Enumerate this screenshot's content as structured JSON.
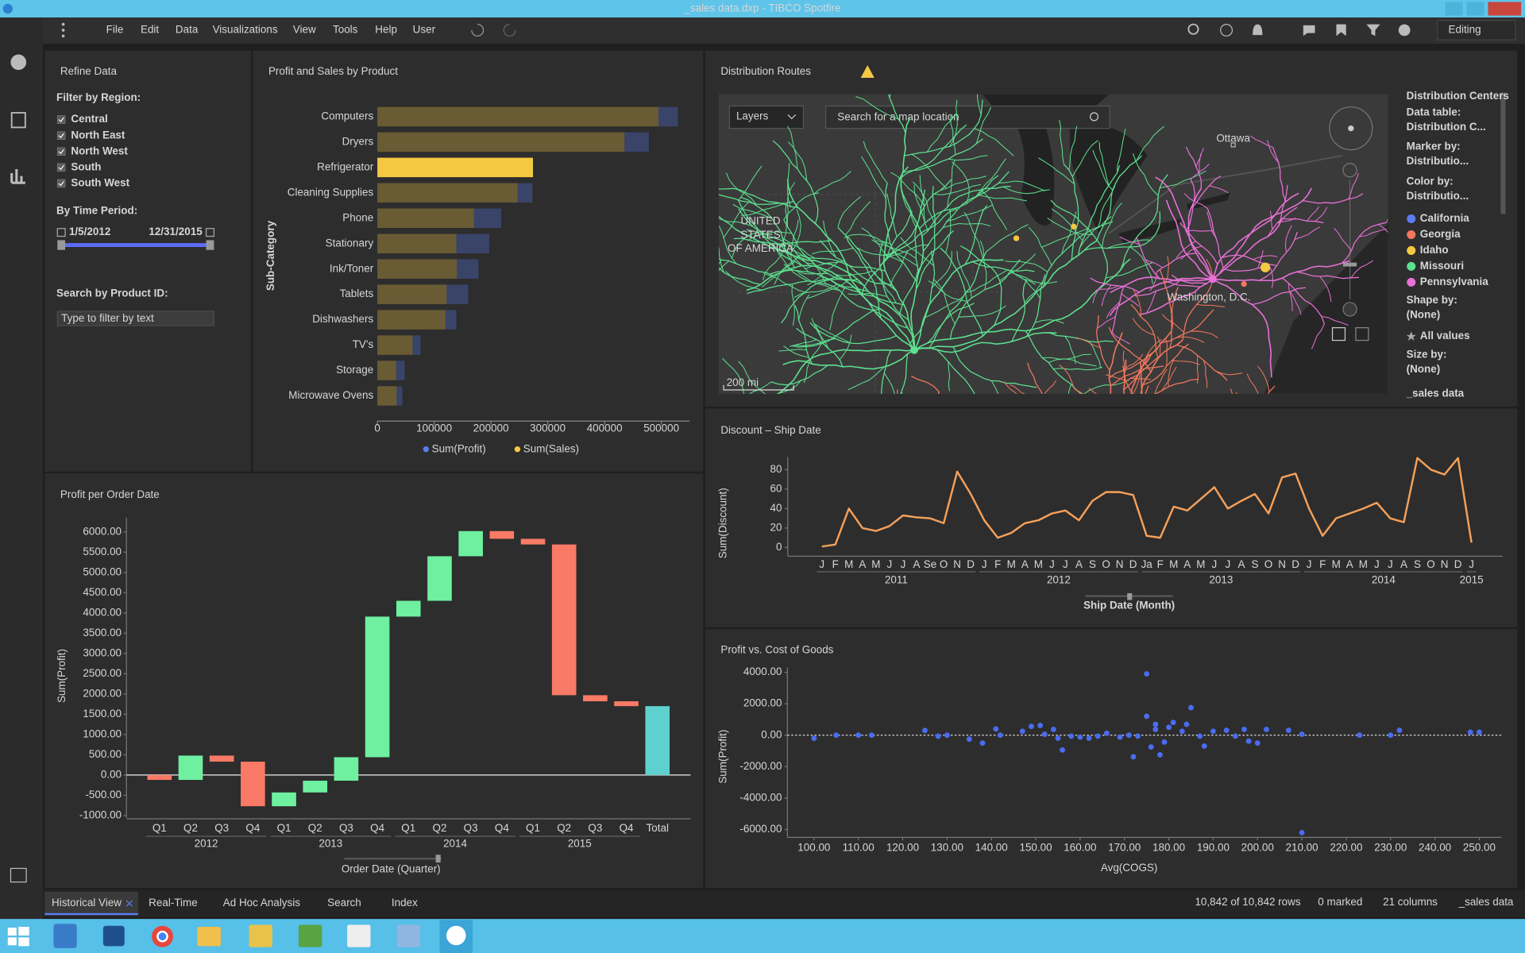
{
  "window": {
    "title": "_sales data.dxp - TIBCO Spotfire"
  },
  "menu": [
    "File",
    "Edit",
    "Data",
    "Visualizations",
    "View",
    "Tools",
    "Help",
    "User"
  ],
  "mode": "Editing",
  "filter_panel": {
    "title": "Refine Data",
    "region_label": "Filter by Region:",
    "regions": [
      "Central",
      "North East",
      "North West",
      "South",
      "South West"
    ],
    "time_label": "By Time Period:",
    "start": "1/5/2012",
    "end": "12/31/2015",
    "search_label": "Search by Product ID:",
    "search_placeholder": "Type to filter by text"
  },
  "map": {
    "title": "Distribution Routes",
    "layers": "Layers",
    "search_placeholder": "Search for a map location",
    "places": [
      "Ottawa",
      "UNITED",
      "STATES",
      "OF AMERICA",
      "Washington, D.C."
    ],
    "scale": "200 mi",
    "legend": {
      "title": "Distribution Centers",
      "data_table_label": "Data table:",
      "data_table": "Distribution C...",
      "marker_label": "Marker by:",
      "marker_by": "Distributio...",
      "color_label": "Color by:",
      "color_by": "Distributio...",
      "items": [
        {
          "name": "California",
          "color": "#5b7cf5"
        },
        {
          "name": "Georgia",
          "color": "#f2775e"
        },
        {
          "name": "Idaho",
          "color": "#f5c842"
        },
        {
          "name": "Missouri",
          "color": "#5de08f"
        },
        {
          "name": "Pennsylvania",
          "color": "#e870d6"
        }
      ],
      "shape_label": "Shape by:",
      "shape_by": "(None)",
      "shape_item": "All values",
      "size_label": "Size by:",
      "size_by": "(None)",
      "table": "_sales data"
    }
  },
  "chart_data": [
    {
      "type": "bar",
      "orientation": "horizontal",
      "stacked": true,
      "title": "Profit and Sales by Product",
      "y_label": "Sub-Category",
      "categories": [
        "Computers",
        "Dryers",
        "Refrigerator",
        "Cleaning Supplies",
        "Phone",
        "Stationary",
        "Ink/Toner",
        "Tablets",
        "Dishwashers",
        "TV's",
        "Storage",
        "Microwave Ovens"
      ],
      "series": [
        {
          "name": "Sum(Profit)",
          "color": "#5b7cf5",
          "values": [
            34000,
            43000,
            null,
            26000,
            48000,
            58000,
            38000,
            38000,
            19000,
            14000,
            15000,
            10000
          ]
        },
        {
          "name": "Sum(Sales)",
          "color": "#f5c842",
          "values": [
            495000,
            435000,
            274000,
            247000,
            170000,
            139000,
            140000,
            122000,
            120000,
            62000,
            33000,
            34000
          ]
        }
      ],
      "marked": [
        2
      ],
      "xlim": [
        0,
        550000
      ],
      "xticks": [
        0,
        100000,
        200000,
        300000,
        400000,
        500000
      ]
    },
    {
      "type": "waterfall",
      "title": "Profit per Order Date",
      "y_label": "Sum(Profit)",
      "x_label": "Order Date (Quarter)",
      "categories": [
        "Q1",
        "Q2",
        "Q3",
        "Q4",
        "Q1",
        "Q2",
        "Q3",
        "Q4",
        "Q1",
        "Q2",
        "Q3",
        "Q4",
        "Q1",
        "Q2",
        "Q3",
        "Q4",
        "Total"
      ],
      "groups": [
        "2012",
        "2013",
        "2014",
        "2015"
      ],
      "values": [
        -120,
        600,
        -150,
        -1100,
        340,
        290,
        580,
        3470,
        390,
        1100,
        620,
        -190,
        -140,
        -3720,
        -150,
        -120,
        1700
      ],
      "colors": {
        "increase": "#6ef0a0",
        "decrease": "#f97a66",
        "total": "#5fd0d0"
      },
      "ylim": [
        -1050,
        6350
      ],
      "yticks": [
        {
          "value": -1000,
          "label": "-1000.00"
        },
        {
          "value": -500,
          "label": "-500.00"
        },
        {
          "value": 0,
          "label": "0.00"
        },
        {
          "value": 500,
          "label": "500.00"
        },
        {
          "value": 1000,
          "label": "1000.00"
        },
        {
          "value": 1500,
          "label": "1500.00"
        },
        {
          "value": 2000,
          "label": "2000.00"
        },
        {
          "value": 2500,
          "label": "2500.00"
        },
        {
          "value": 3000,
          "label": "3000.00"
        },
        {
          "value": 3500,
          "label": "3500.00"
        },
        {
          "value": 4000,
          "label": "4000.00"
        },
        {
          "value": 4500,
          "label": "4500.00"
        },
        {
          "value": 5000,
          "label": "5000.00"
        },
        {
          "value": 5500,
          "label": "5500.00"
        },
        {
          "value": 6000,
          "label": "6000.00"
        }
      ]
    },
    {
      "type": "line",
      "title": "Discount – Ship Date",
      "y_label": "Sum(Discount)",
      "x_label": "Ship Date (Month)",
      "categories": [
        "J",
        "F",
        "M",
        "A",
        "M",
        "J",
        "J",
        "A",
        "Se",
        "O",
        "N",
        "D",
        "J",
        "F",
        "M",
        "A",
        "M",
        "J",
        "J",
        "A",
        "S",
        "O",
        "N",
        "D",
        "Ja",
        "F",
        "M",
        "A",
        "M",
        "J",
        "J",
        "A",
        "S",
        "O",
        "N",
        "D",
        "J",
        "F",
        "M",
        "A",
        "M",
        "J",
        "J",
        "A",
        "S",
        "O",
        "N",
        "D",
        "J"
      ],
      "groups": [
        "2011",
        "2012",
        "2013",
        "2014",
        "2015"
      ],
      "color": "#f5a05a",
      "values": [
        1,
        3,
        40,
        20,
        17,
        22,
        33,
        31,
        30,
        25,
        78,
        55,
        28,
        10,
        15,
        25,
        28,
        35,
        38,
        28,
        48,
        57,
        57,
        54,
        12,
        10,
        42,
        38,
        50,
        62,
        40,
        48,
        55,
        35,
        72,
        76,
        40,
        12,
        30,
        35,
        40,
        46,
        30,
        26,
        92,
        80,
        75,
        92,
        5
      ],
      "ylim": [
        0,
        93
      ],
      "yticks": [
        0,
        20,
        40,
        60,
        80
      ]
    },
    {
      "type": "scatter",
      "title": "Profit vs. Cost of Goods",
      "y_label": "Sum(Profit)",
      "x_label": "Avg(COGS)",
      "color": "#4a6cf0",
      "x": [
        100,
        105,
        110,
        113,
        125,
        128,
        130,
        135,
        138,
        141,
        142,
        147,
        149,
        151,
        152,
        154,
        155,
        156,
        158,
        160,
        162,
        164,
        166,
        169,
        171,
        172,
        173,
        175,
        175,
        176,
        177,
        177,
        178,
        179,
        180,
        181,
        183,
        184,
        185,
        187,
        188,
        190,
        193,
        195,
        197,
        198,
        200,
        202,
        207,
        210,
        210,
        223,
        230,
        232,
        248,
        250
      ],
      "values": [
        -200,
        0,
        0,
        0,
        300,
        -60,
        0,
        -250,
        -500,
        400,
        0,
        250,
        560,
        620,
        60,
        370,
        -190,
        -940,
        -60,
        -125,
        -190,
        -60,
        125,
        -125,
        0,
        -1375,
        -60,
        3900,
        1200,
        -750,
        370,
        690,
        -1250,
        -440,
        500,
        810,
        250,
        690,
        1750,
        -60,
        -690,
        250,
        310,
        -60,
        370,
        -375,
        -500,
        370,
        310,
        -6200,
        60,
        0,
        0,
        310,
        190,
        190
      ],
      "xlim": [
        94,
        255
      ],
      "ylim": [
        -6500,
        4300
      ],
      "xticks": [
        {
          "value": 100,
          "label": "100.00"
        },
        {
          "value": 110,
          "label": "110.00"
        },
        {
          "value": 120,
          "label": "120.00"
        },
        {
          "value": 130,
          "label": "130.00"
        },
        {
          "value": 140,
          "label": "140.00"
        },
        {
          "value": 150,
          "label": "150.00"
        },
        {
          "value": 160,
          "label": "160.00"
        },
        {
          "value": 170,
          "label": "170.00"
        },
        {
          "value": 180,
          "label": "180.00"
        },
        {
          "value": 190,
          "label": "190.00"
        },
        {
          "value": 200,
          "label": "200.00"
        },
        {
          "value": 210,
          "label": "210.00"
        },
        {
          "value": 220,
          "label": "220.00"
        },
        {
          "value": 230,
          "label": "230.00"
        },
        {
          "value": 240,
          "label": "240.00"
        },
        {
          "value": 250,
          "label": "250.00"
        }
      ],
      "yticks": [
        {
          "value": 4000,
          "label": "4000.00"
        },
        {
          "value": 2000,
          "label": "2000.00"
        },
        {
          "value": 0,
          "label": "0.00"
        },
        {
          "value": -2000,
          "label": "-2000.00"
        },
        {
          "value": -4000,
          "label": "-4000.00"
        },
        {
          "value": -6000,
          "label": "-6000.00"
        }
      ]
    }
  ],
  "tabs": [
    "Historical View",
    "Real-Time",
    "Ad Hoc Analysis",
    "Search",
    "Index"
  ],
  "status": [
    "10,842 of 10,842 rows",
    "0 marked",
    "21 columns",
    "_sales data"
  ]
}
